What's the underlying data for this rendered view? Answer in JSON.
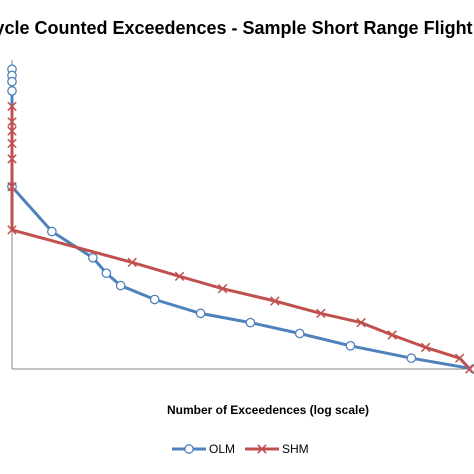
{
  "chart_data": {
    "type": "line",
    "title": "Cycle Counted Exceedences - Sample Short Range Flight",
    "xlabel": "Number of Exceedences (log scale)",
    "ylabel": "",
    "x_scale": "log",
    "xlim": [
      1,
      100000
    ],
    "ylim": [
      0,
      10
    ],
    "grid": false,
    "legend_position": "bottom",
    "series": [
      {
        "name": "OLM",
        "marker": "circle",
        "color": "#4F81BD",
        "points": [
          {
            "x": 1,
            "y": 9.7
          },
          {
            "x": 1,
            "y": 9.5
          },
          {
            "x": 1,
            "y": 9.3
          },
          {
            "x": 1,
            "y": 9.0
          },
          {
            "x": 1,
            "y": 5.9
          },
          {
            "x": 2.7,
            "y": 4.45
          },
          {
            "x": 7.5,
            "y": 3.6
          },
          {
            "x": 10.5,
            "y": 3.1
          },
          {
            "x": 15,
            "y": 2.7
          },
          {
            "x": 35,
            "y": 2.25
          },
          {
            "x": 110,
            "y": 1.8
          },
          {
            "x": 380,
            "y": 1.5
          },
          {
            "x": 1300,
            "y": 1.15
          },
          {
            "x": 4600,
            "y": 0.75
          },
          {
            "x": 21000,
            "y": 0.35
          },
          {
            "x": 100000,
            "y": 0.0
          }
        ]
      },
      {
        "name": "SHM",
        "marker": "x",
        "color": "#C0504D",
        "points": [
          {
            "x": 1,
            "y": 8.5
          },
          {
            "x": 1,
            "y": 8.0
          },
          {
            "x": 1,
            "y": 7.7
          },
          {
            "x": 1,
            "y": 7.3
          },
          {
            "x": 1,
            "y": 6.8
          },
          {
            "x": 1,
            "y": 5.9
          },
          {
            "x": 1,
            "y": 4.5
          },
          {
            "x": 20,
            "y": 3.45
          },
          {
            "x": 65,
            "y": 3.0
          },
          {
            "x": 190,
            "y": 2.6
          },
          {
            "x": 700,
            "y": 2.2
          },
          {
            "x": 2200,
            "y": 1.8
          },
          {
            "x": 6000,
            "y": 1.5
          },
          {
            "x": 13000,
            "y": 1.1
          },
          {
            "x": 30000,
            "y": 0.7
          },
          {
            "x": 70000,
            "y": 0.35
          },
          {
            "x": 90000,
            "y": 0.0
          }
        ]
      }
    ]
  }
}
